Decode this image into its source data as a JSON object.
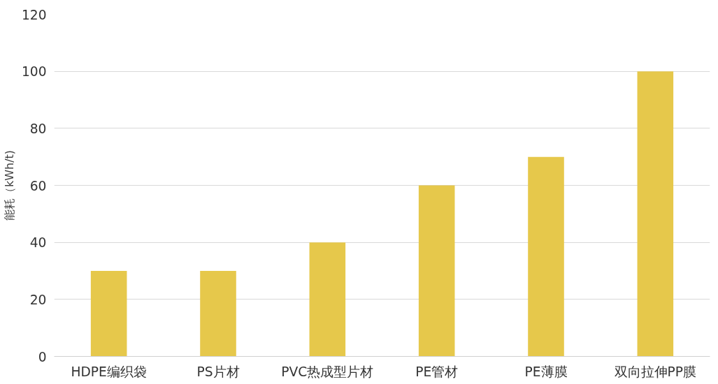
{
  "chart_data": {
    "type": "bar",
    "ylabel": "能耗（kWh/t)",
    "categories": [
      "HDPE编织袋",
      "PS片材",
      "PVC热成型片材",
      "PE管材",
      "PE薄膜",
      "双向拉伸PP膜"
    ],
    "values": [
      30,
      30,
      40,
      60,
      70,
      100
    ],
    "color": "#e6c84b",
    "ylim": [
      0,
      120
    ],
    "yticks": [
      0,
      20,
      40,
      60,
      80,
      100,
      120
    ],
    "grid": "y"
  }
}
